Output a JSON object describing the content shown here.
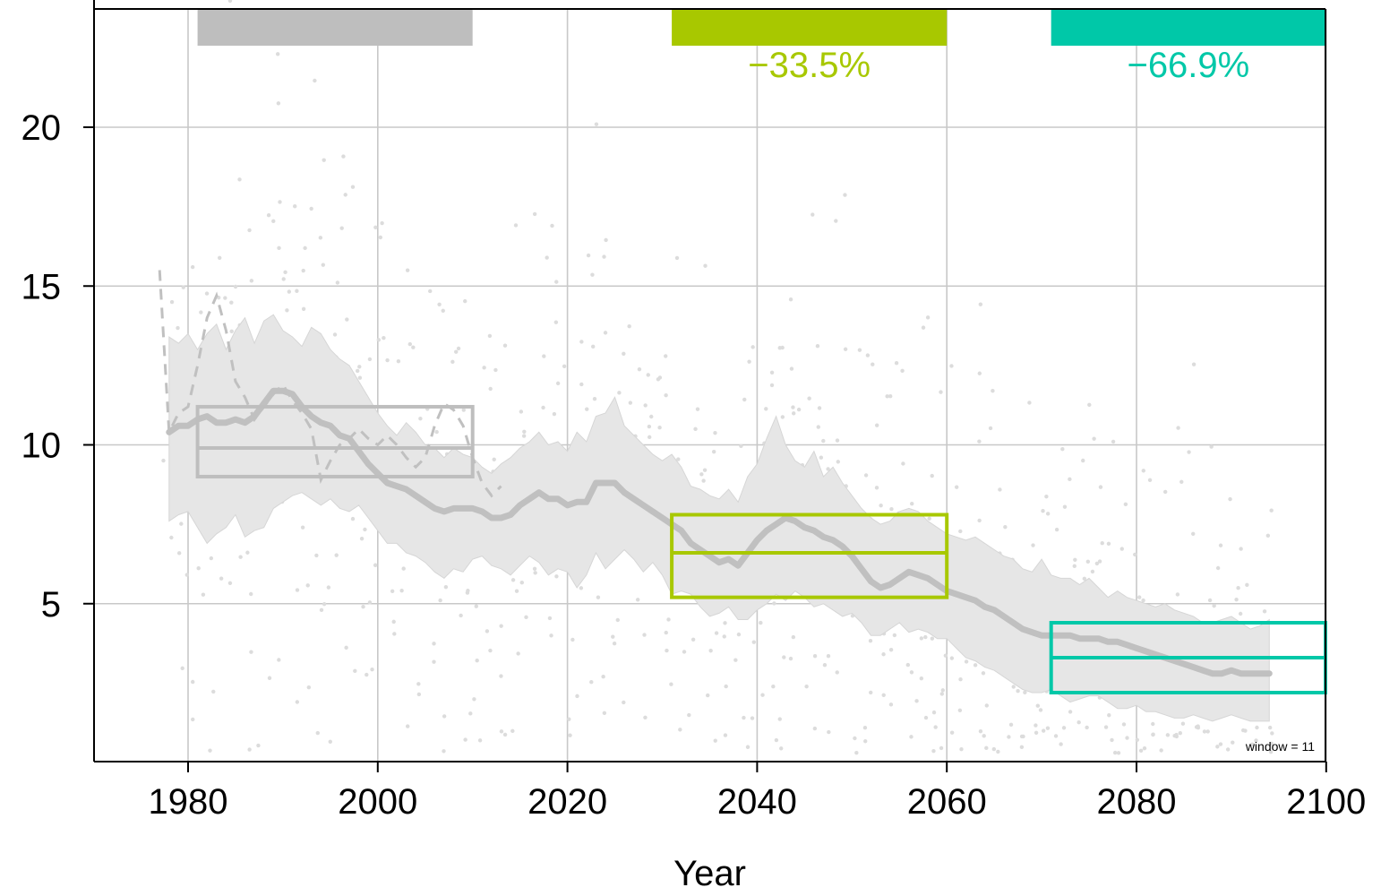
{
  "chart_data": {
    "type": "line",
    "title": "",
    "xlabel": "Year",
    "ylabel": "",
    "xlim": [
      1970,
      2100
    ],
    "ylim": [
      0,
      24
    ],
    "x_ticks": [
      1980,
      2000,
      2020,
      2040,
      2060,
      2080,
      2100
    ],
    "y_ticks": [
      5,
      10,
      15,
      20
    ],
    "grid": true,
    "window_note": "window =  11",
    "periods": [
      {
        "start": 1981,
        "end": 2010,
        "mean": 9.9,
        "low": 9.0,
        "high": 11.2,
        "color": "#bebebe",
        "change_label": ""
      },
      {
        "start": 2031,
        "end": 2060,
        "mean": 6.6,
        "low": 5.2,
        "high": 7.8,
        "color": "#a8c800",
        "change_label": "−33.5%"
      },
      {
        "start": 2071,
        "end": 2100,
        "mean": 3.3,
        "low": 2.2,
        "high": 4.4,
        "color": "#00c8a8",
        "change_label": "−66.9%"
      }
    ],
    "series": [
      {
        "x": [
          1978,
          1979,
          1980,
          1981,
          1982,
          1983,
          1984,
          1985,
          1986,
          1987,
          1988,
          1989,
          1990,
          1991,
          1992,
          1993,
          1994,
          1995,
          1996,
          1997,
          1998,
          1999,
          2000,
          2001,
          2002,
          2003,
          2004,
          2005,
          2006,
          2007,
          2008,
          2009,
          2010,
          2011,
          2012,
          2013,
          2014,
          2015,
          2016,
          2017,
          2018,
          2019,
          2020,
          2021,
          2022,
          2023,
          2024,
          2025,
          2026,
          2027,
          2028,
          2029,
          2030,
          2031,
          2032,
          2033,
          2034,
          2035,
          2036,
          2037,
          2038,
          2039,
          2040,
          2041,
          2042,
          2043,
          2044,
          2045,
          2046,
          2047,
          2048,
          2049,
          2050,
          2051,
          2052,
          2053,
          2054,
          2055,
          2056,
          2057,
          2058,
          2059,
          2060,
          2061,
          2062,
          2063,
          2064,
          2065,
          2066,
          2067,
          2068,
          2069,
          2070,
          2071,
          2072,
          2073,
          2074,
          2075,
          2076,
          2077,
          2078,
          2079,
          2080,
          2081,
          2082,
          2083,
          2084,
          2085,
          2086,
          2087,
          2088,
          2089,
          2090,
          2091,
          2092,
          2093,
          2094
        ],
        "mean": [
          10.4,
          10.6,
          10.6,
          10.8,
          10.9,
          10.7,
          10.7,
          10.8,
          10.7,
          10.9,
          11.3,
          11.7,
          11.7,
          11.6,
          11.2,
          10.9,
          10.7,
          10.6,
          10.3,
          10.2,
          9.8,
          9.4,
          9.1,
          8.8,
          8.7,
          8.6,
          8.4,
          8.2,
          8.0,
          7.9,
          8.0,
          8.0,
          8.0,
          7.9,
          7.7,
          7.7,
          7.8,
          8.1,
          8.3,
          8.5,
          8.3,
          8.3,
          8.1,
          8.2,
          8.2,
          8.8,
          8.8,
          8.8,
          8.5,
          8.3,
          8.1,
          7.9,
          7.7,
          7.5,
          7.3,
          6.9,
          6.7,
          6.5,
          6.3,
          6.4,
          6.2,
          6.6,
          7.0,
          7.3,
          7.5,
          7.7,
          7.6,
          7.4,
          7.3,
          7.1,
          7.0,
          6.8,
          6.5,
          6.1,
          5.7,
          5.5,
          5.6,
          5.8,
          6.0,
          5.9,
          5.8,
          5.6,
          5.4,
          5.3,
          5.2,
          5.1,
          4.9,
          4.8,
          4.6,
          4.4,
          4.2,
          4.1,
          4.0,
          4.0,
          4.0,
          4.0,
          3.9,
          3.9,
          3.9,
          3.8,
          3.8,
          3.7,
          3.6,
          3.5,
          3.4,
          3.3,
          3.2,
          3.1,
          3.0,
          2.9,
          2.8,
          2.8,
          2.9,
          2.8,
          2.8,
          2.8,
          2.8
        ],
        "low": [
          7.6,
          7.8,
          7.9,
          7.4,
          6.9,
          7.2,
          7.4,
          7.8,
          7.1,
          7.3,
          7.4,
          8.0,
          8.2,
          8.4,
          8.5,
          8.3,
          8.1,
          8.3,
          8.0,
          7.9,
          8.1,
          7.7,
          7.3,
          6.9,
          6.9,
          6.6,
          6.5,
          6.3,
          6.0,
          5.8,
          6.1,
          6.0,
          6.4,
          6.5,
          6.2,
          6.1,
          5.9,
          6.2,
          6.5,
          6.3,
          5.9,
          6.1,
          6.0,
          5.5,
          5.9,
          6.6,
          6.1,
          6.4,
          6.7,
          6.4,
          6.0,
          6.3,
          5.9,
          5.3,
          5.4,
          5.3,
          4.9,
          4.6,
          4.7,
          4.9,
          4.5,
          4.5,
          4.8,
          5.0,
          5.3,
          5.1,
          5.4,
          5.2,
          4.9,
          5.0,
          4.8,
          4.6,
          4.7,
          4.4,
          4.0,
          4.0,
          4.2,
          4.4,
          4.1,
          4.2,
          4.1,
          3.9,
          3.9,
          3.6,
          3.3,
          3.2,
          3.0,
          2.9,
          2.7,
          2.5,
          2.3,
          2.2,
          2.2,
          2.3,
          2.1,
          1.9,
          2.0,
          2.1,
          2.1,
          1.9,
          1.7,
          1.7,
          1.8,
          1.6,
          1.6,
          1.5,
          1.4,
          1.4,
          1.5,
          1.4,
          1.3,
          1.4,
          1.5,
          1.4,
          1.3,
          1.3,
          1.3
        ],
        "high": [
          13.4,
          13.2,
          13.5,
          13.0,
          13.5,
          13.8,
          13.0,
          13.6,
          14.0,
          13.2,
          13.9,
          14.1,
          13.6,
          13.4,
          13.1,
          13.7,
          13.5,
          13.0,
          12.7,
          12.5,
          12.0,
          11.5,
          11.0,
          10.6,
          10.3,
          10.7,
          10.4,
          10.0,
          9.9,
          9.6,
          9.9,
          9.7,
          9.6,
          9.3,
          9.1,
          9.4,
          9.6,
          9.9,
          10.1,
          10.4,
          10.0,
          10.1,
          9.8,
          10.4,
          10.1,
          10.9,
          11.0,
          11.5,
          10.6,
          10.3,
          10.0,
          9.7,
          9.5,
          9.7,
          9.3,
          8.7,
          8.6,
          8.4,
          8.3,
          8.6,
          8.2,
          9.0,
          9.4,
          10.2,
          10.9,
          10.0,
          9.5,
          9.3,
          9.8,
          9.0,
          9.3,
          8.8,
          8.4,
          8.0,
          7.7,
          7.5,
          7.6,
          7.9,
          8.0,
          7.9,
          7.6,
          7.4,
          7.2,
          7.1,
          7.0,
          7.1,
          6.9,
          6.7,
          6.5,
          6.4,
          6.1,
          6.0,
          6.4,
          5.9,
          5.8,
          5.8,
          5.6,
          5.8,
          5.5,
          5.2,
          5.4,
          5.2,
          5.1,
          5.0,
          4.9,
          5.0,
          4.8,
          4.7,
          4.6,
          4.4,
          4.4,
          4.5,
          4.6,
          4.4,
          4.2,
          4.3,
          4.5
        ]
      }
    ],
    "dashed_series": {
      "x": [
        1977,
        1978,
        1979,
        1980,
        1981,
        1982,
        1983,
        1984,
        1985,
        1986,
        1987,
        1988,
        1989,
        1990,
        1991,
        1992,
        1993,
        1994,
        1995,
        1996,
        1997,
        1998,
        1999,
        2000,
        2001,
        2002,
        2003,
        2004,
        2005,
        2006,
        2007,
        2008,
        2009,
        2010,
        2011,
        2012,
        2013
      ],
      "y": [
        15.5,
        10.4,
        11.0,
        11.2,
        12.5,
        14.0,
        14.7,
        13.6,
        12.0,
        11.5,
        10.8,
        11.2,
        11.6,
        11.9,
        11.4,
        11.0,
        10.5,
        8.9,
        9.5,
        10.0,
        10.2,
        10.5,
        10.2,
        10.0,
        10.3,
        10.0,
        9.6,
        9.3,
        9.6,
        10.6,
        11.3,
        11.1,
        10.6,
        9.6,
        8.8,
        8.4,
        8.7
      ]
    }
  }
}
